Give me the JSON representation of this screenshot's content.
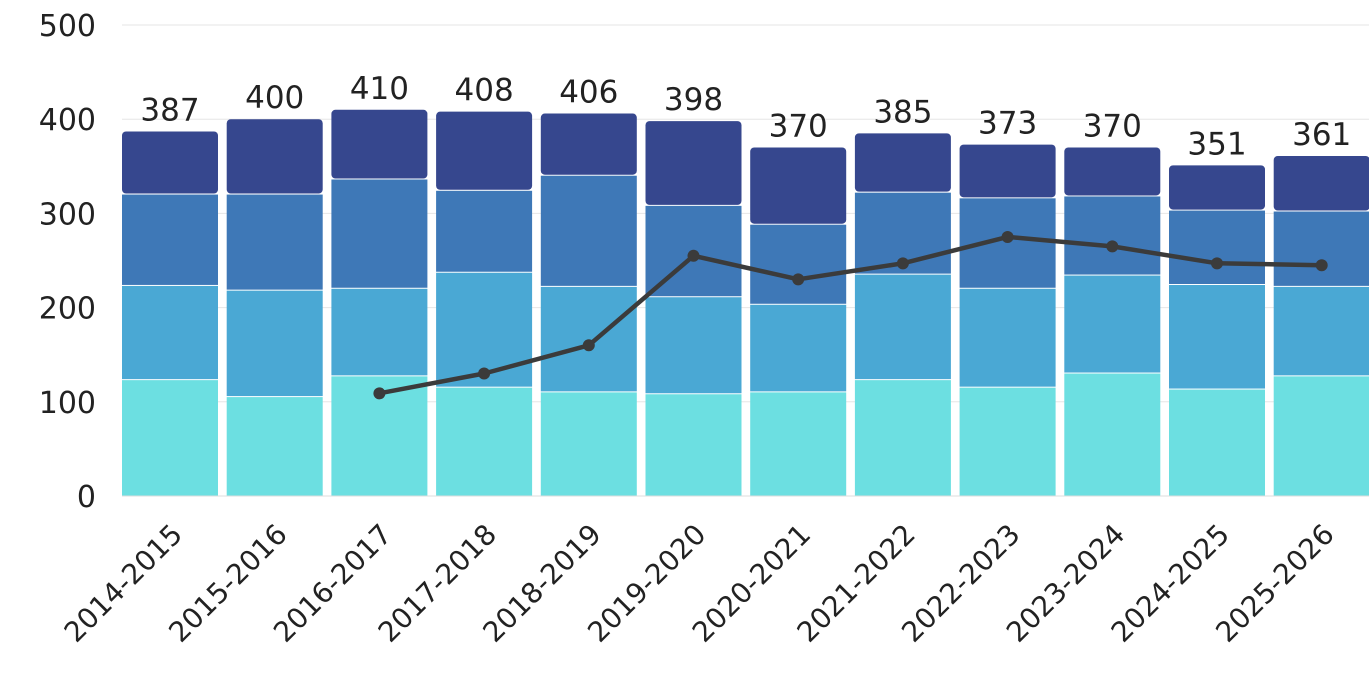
{
  "chart_data": {
    "type": "bar",
    "stacked": true,
    "categories": [
      "2014-2015",
      "2015-2016",
      "2016-2017",
      "2017-2018",
      "2018-2019",
      "2019-2020",
      "2020-2021",
      "2021-2022",
      "2022-2023",
      "2023-2024",
      "2024-2025",
      "2025-2026"
    ],
    "series": [
      {
        "values": [
          123,
          105,
          127,
          115,
          110,
          108,
          110,
          123,
          115,
          130,
          113,
          127
        ],
        "color": "#6cdfe1"
      },
      {
        "values": [
          100,
          113,
          93,
          122,
          112,
          103,
          93,
          112,
          105,
          104,
          111,
          95
        ],
        "color": "#4aa8d4"
      },
      {
        "values": [
          97,
          102,
          116,
          87,
          118,
          97,
          85,
          87,
          96,
          84,
          79,
          80
        ],
        "color": "#3e78b7"
      },
      {
        "values": [
          67,
          80,
          74,
          84,
          66,
          90,
          82,
          63,
          57,
          52,
          48,
          59
        ],
        "color": "#36478e"
      }
    ],
    "totals": [
      387,
      400,
      410,
      408,
      406,
      398,
      370,
      385,
      373,
      370,
      351,
      361
    ],
    "line": {
      "values": [
        null,
        null,
        109,
        130,
        160,
        255,
        230,
        247,
        275,
        265,
        247,
        245
      ],
      "color": "#3b3b3b"
    },
    "yticks": [
      0,
      100,
      200,
      300,
      400,
      500
    ],
    "ylim": [
      0,
      500
    ],
    "grid": true,
    "legend": "none"
  }
}
